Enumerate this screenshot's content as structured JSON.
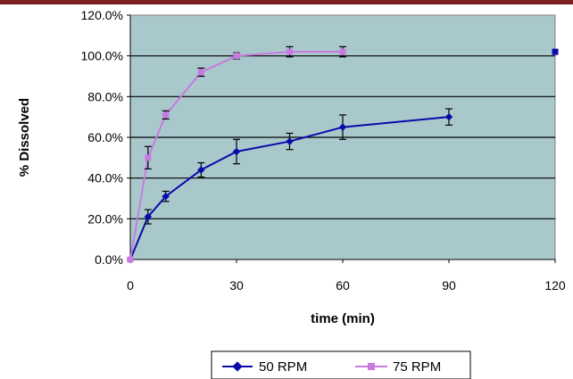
{
  "chart_data": {
    "type": "line",
    "xlabel": "time (min)",
    "ylabel": "% Dissolved",
    "xlim": [
      0,
      120
    ],
    "ylim": [
      0,
      120
    ],
    "x_ticks": [
      "0",
      "30",
      "60",
      "90",
      "120"
    ],
    "y_ticks": [
      "0.0%",
      "20.0%",
      "40.0%",
      "60.0%",
      "80.0%",
      "100.0%",
      "120.0%"
    ],
    "grid": "horizontal",
    "legend_position": "bottom",
    "colors": {
      "plot_background": "#a9c8cc",
      "gridline": "#000000",
      "accent_rule": "#7a1f1f"
    },
    "series": [
      {
        "name": "50 RPM",
        "color": "#0a0aa8",
        "marker": "diamond",
        "points": [
          {
            "x": 0,
            "y": 0,
            "err": 0
          },
          {
            "x": 5,
            "y": 21,
            "err": 3.5
          },
          {
            "x": 10,
            "y": 31,
            "err": 2.5
          },
          {
            "x": 20,
            "y": 44,
            "err": 3.5
          },
          {
            "x": 30,
            "y": 53,
            "err": 6
          },
          {
            "x": 45,
            "y": 58,
            "err": 4
          },
          {
            "x": 60,
            "y": 65,
            "err": 6
          },
          {
            "x": 90,
            "y": 70,
            "err": 4
          }
        ]
      },
      {
        "name": "75 RPM",
        "color": "#c77be0",
        "marker": "square",
        "points": [
          {
            "x": 0,
            "y": 0,
            "err": 0
          },
          {
            "x": 5,
            "y": 50,
            "err": 5.5
          },
          {
            "x": 10,
            "y": 71,
            "err": 2
          },
          {
            "x": 20,
            "y": 92,
            "err": 2
          },
          {
            "x": 30,
            "y": 100,
            "err": 1.5
          },
          {
            "x": 45,
            "y": 102,
            "err": 2.5
          },
          {
            "x": 60,
            "y": 102,
            "err": 2.5
          }
        ]
      },
      {
        "name": "",
        "color": "#0a0aa8",
        "marker": "square",
        "points": [
          {
            "x": 120,
            "y": 102,
            "err": 0
          }
        ]
      }
    ]
  }
}
